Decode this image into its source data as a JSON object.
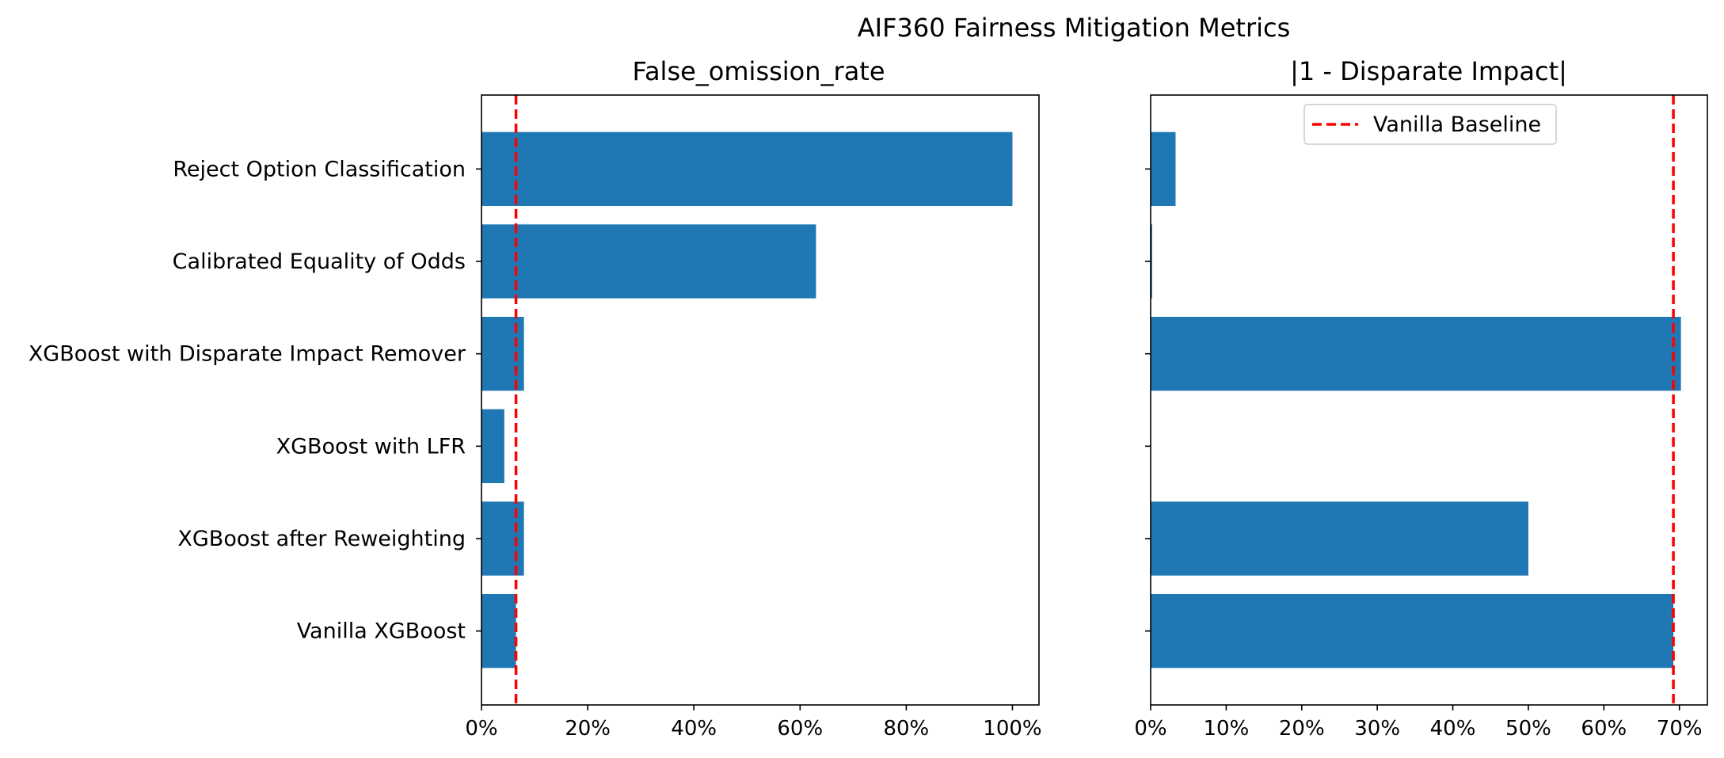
{
  "title": "AIF360 Fairness Mitigation Metrics",
  "chart_data": [
    {
      "type": "bar",
      "orientation": "horizontal",
      "title": "False_omission_rate",
      "categories": [
        "Vanilla XGBoost",
        "XGBoost after Reweighting",
        "XGBoost with LFR",
        "XGBoost with Disparate Impact Remover",
        "Calibrated Equality of Odds",
        "Reject Option Classification"
      ],
      "values": [
        6.5,
        8.0,
        4.3,
        8.0,
        63.0,
        100.0
      ],
      "xlim": [
        0,
        105
      ],
      "xticks": [
        0,
        20,
        40,
        60,
        80,
        100
      ],
      "xtick_labels": [
        "0%",
        "20%",
        "40%",
        "60%",
        "80%",
        "100%"
      ],
      "baseline": 6.5,
      "bar_color": "#1f77b4",
      "baseline_color": "#ff0000",
      "grid": false
    },
    {
      "type": "bar",
      "orientation": "horizontal",
      "title": "|1 - Disparate Impact|",
      "categories": [
        "Vanilla XGBoost",
        "XGBoost after Reweighting",
        "XGBoost with LFR",
        "XGBoost with Disparate Impact Remover",
        "Calibrated Equality of Odds",
        "Reject Option Classification"
      ],
      "values": [
        69.2,
        50.0,
        0.0,
        70.2,
        0.2,
        3.3
      ],
      "xlim": [
        0,
        73.7
      ],
      "xticks": [
        0,
        10,
        20,
        30,
        40,
        50,
        60,
        70
      ],
      "xtick_labels": [
        "0%",
        "10%",
        "20%",
        "30%",
        "40%",
        "50%",
        "60%",
        "70%"
      ],
      "baseline": 69.2,
      "bar_color": "#1f77b4",
      "baseline_color": "#ff0000",
      "grid": false,
      "legend": {
        "entries": [
          "Vanilla Baseline"
        ],
        "placement": "upper-center"
      }
    }
  ]
}
